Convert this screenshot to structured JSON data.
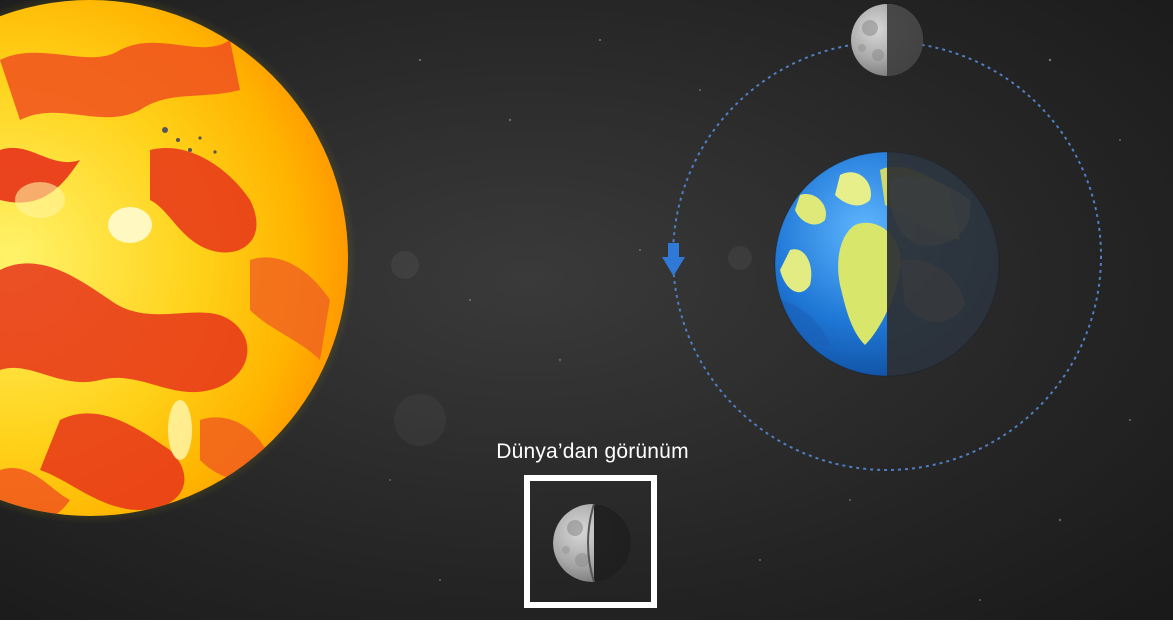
{
  "diagram": {
    "caption": "Dünya’dan görünüm",
    "objects": {
      "sun": "sun",
      "earth": "earth",
      "moon_in_orbit": "moon",
      "moon_view": "moon-phase-first-quarter",
      "orbit_direction_icon": "arrow-down-icon"
    },
    "colors": {
      "space": "#1f1f1f",
      "orbit": "#4f7fc2",
      "arrow": "#2f7ad6",
      "frame": "#ffffff",
      "sun_core": "#ffe81a",
      "sun_red": "#e8321a"
    }
  }
}
